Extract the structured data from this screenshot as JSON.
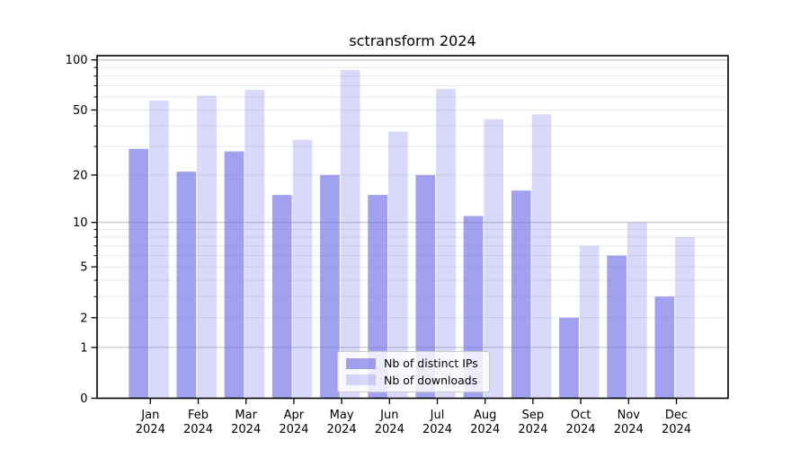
{
  "chart_data": {
    "type": "bar",
    "title": "sctransform 2024",
    "categories": [
      "Jan",
      "Feb",
      "Mar",
      "Apr",
      "May",
      "Jun",
      "Jul",
      "Aug",
      "Sep",
      "Oct",
      "Nov",
      "Dec"
    ],
    "category_year": "2024",
    "series": [
      {
        "name": "Nb of distinct IPs",
        "values": [
          29,
          21,
          28,
          15,
          20,
          15,
          20,
          11,
          16,
          2,
          6,
          3
        ],
        "base_color": "#6e6ee8",
        "fill_opacity": 0.65,
        "display_color": "#a1a1f0"
      },
      {
        "name": "Nb of downloads",
        "values": [
          57,
          61,
          66,
          33,
          87,
          37,
          67,
          44,
          47,
          7,
          10,
          8
        ],
        "base_color": "#6e6ee8",
        "fill_opacity": 0.26,
        "display_color": "#d9d9f9"
      }
    ],
    "yscale": "log1p",
    "ylim": [
      0,
      107
    ],
    "yticks_labeled": [
      0,
      1,
      2,
      5,
      10,
      20,
      50,
      100
    ],
    "yticks_major": [
      1,
      10,
      100
    ],
    "yticks_minor": [
      3,
      4,
      6,
      7,
      8,
      9,
      30,
      40,
      60,
      70,
      80,
      90
    ],
    "grid": true,
    "legend_position": "lower center"
  },
  "colors": {
    "spine": "#000000",
    "major_grid": "#bcbcbc",
    "minor_grid": "#e9e9e9",
    "tick_label": "#000000",
    "background": "#ffffff"
  }
}
